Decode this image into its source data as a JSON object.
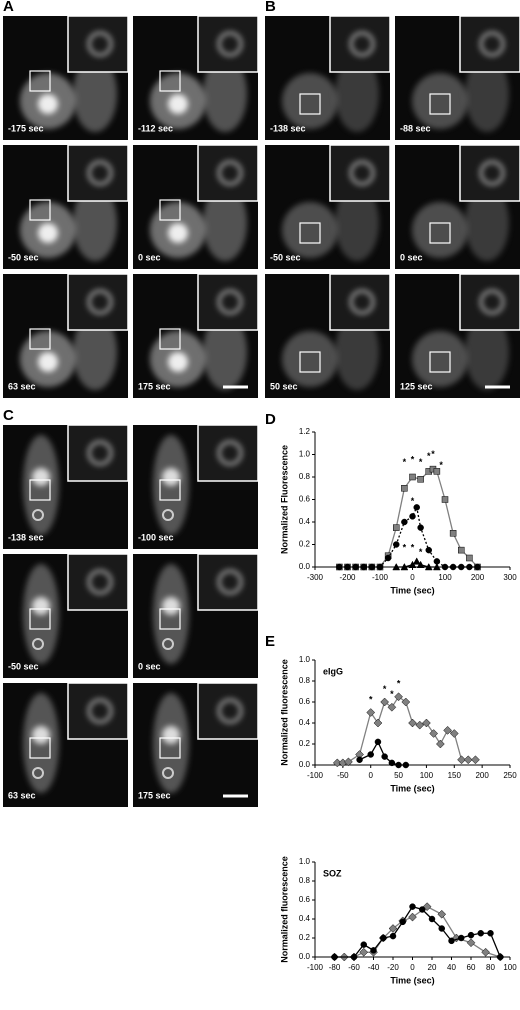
{
  "panels": [
    {
      "label": "A",
      "frames": [
        "-175 sec",
        "-112 sec",
        "-50 sec",
        "0 sec",
        "63 sec",
        "175 sec"
      ]
    },
    {
      "label": "B",
      "frames": [
        "-138 sec",
        "-88 sec",
        "-50 sec",
        "0 sec",
        "50 sec",
        "125 sec"
      ]
    },
    {
      "label": "C",
      "frames": [
        "-138 sec",
        "-100 sec",
        "-50 sec",
        "0 sec",
        "63 sec",
        "175 sec"
      ]
    }
  ],
  "chart_data": [
    {
      "type": "line",
      "panel": "D",
      "xlabel": "Time (sec)",
      "ylabel": "Normalized Fluorescence",
      "xlim": [
        -300,
        300
      ],
      "xticks": [
        -300,
        -200,
        -100,
        0,
        100,
        200,
        300
      ],
      "ylim": [
        0,
        1.2
      ],
      "yticks": [
        {
          "value": 0,
          "label": "0.0"
        },
        0.2,
        0.4,
        0.6,
        0.8,
        {
          "value": 1,
          "label": "1.0"
        },
        1.2
      ],
      "series": [
        {
          "color": "#808080",
          "marker": "square",
          "dash": false,
          "x": [
            -225,
            -200,
            -175,
            -150,
            -125,
            -100,
            -75,
            -50,
            -25,
            0,
            25,
            50,
            63,
            75,
            100,
            125,
            150,
            175,
            200
          ],
          "values": [
            0,
            0,
            0,
            0,
            0,
            0,
            0.1,
            0.35,
            0.7,
            0.8,
            0.78,
            0.85,
            0.87,
            0.85,
            0.6,
            0.3,
            0.15,
            0.08,
            0
          ]
        },
        {
          "color": "#000000",
          "marker": "circle",
          "dash": true,
          "x": [
            -225,
            -200,
            -175,
            -150,
            -125,
            -100,
            -75,
            -50,
            -25,
            0,
            13,
            25,
            50,
            75,
            100,
            125,
            150,
            175,
            200
          ],
          "values": [
            0,
            0,
            0,
            0,
            0,
            0,
            0.08,
            0.2,
            0.4,
            0.45,
            0.53,
            0.35,
            0.15,
            0.05,
            0,
            0,
            0,
            0,
            0
          ]
        },
        {
          "color": "#000000",
          "marker": "triangle",
          "dash": false,
          "x": [
            -50,
            -25,
            0,
            13,
            25,
            50,
            75
          ],
          "values": [
            0,
            0,
            0.02,
            0.05,
            0.02,
            0,
            0
          ]
        }
      ],
      "annotations": [
        {
          "text": "*",
          "x": -25,
          "y": 0.93
        },
        {
          "text": "*",
          "x": 0,
          "y": 0.95
        },
        {
          "text": "*",
          "x": 25,
          "y": 0.93
        },
        {
          "text": "*",
          "x": 50,
          "y": 0.98
        },
        {
          "text": "*",
          "x": 63,
          "y": 1.0
        },
        {
          "text": "*",
          "x": 88,
          "y": 0.9
        },
        {
          "text": "*",
          "x": 0,
          "y": 0.58
        },
        {
          "text": "*",
          "x": -25,
          "y": 0.17
        },
        {
          "text": "*",
          "x": 0,
          "y": 0.17
        },
        {
          "text": "*",
          "x": 25,
          "y": 0.13
        }
      ]
    },
    {
      "type": "line",
      "panel": "E",
      "label": "eIgG",
      "xlabel": "Time (sec)",
      "ylabel": "Normalized fluorescence",
      "xlim": [
        -100,
        250
      ],
      "xticks": [
        -100,
        -50,
        0,
        50,
        100,
        150,
        200,
        250
      ],
      "ylim": [
        0,
        1
      ],
      "yticks": [
        {
          "value": 0,
          "label": "0.0"
        },
        0.2,
        0.4,
        0.6,
        0.8,
        {
          "value": 1,
          "label": "1.0"
        }
      ],
      "series": [
        {
          "color": "#808080",
          "marker": "diamond",
          "dash": false,
          "x": [
            -60,
            -50,
            -40,
            -20,
            0,
            13,
            25,
            38,
            50,
            63,
            75,
            88,
            100,
            113,
            125,
            138,
            150,
            163,
            175,
            188
          ],
          "values": [
            0.02,
            0.02,
            0.03,
            0.1,
            0.5,
            0.4,
            0.6,
            0.55,
            0.65,
            0.6,
            0.4,
            0.38,
            0.4,
            0.3,
            0.2,
            0.33,
            0.3,
            0.05,
            0.05,
            0.05
          ]
        },
        {
          "color": "#000000",
          "marker": "circle",
          "dash": false,
          "x": [
            -20,
            0,
            13,
            25,
            38,
            50,
            63
          ],
          "values": [
            0.05,
            0.1,
            0.22,
            0.08,
            0.02,
            0,
            0
          ]
        }
      ],
      "annotations": [
        {
          "text": "*",
          "x": 0,
          "y": 0.62
        },
        {
          "text": "*",
          "x": 25,
          "y": 0.72
        },
        {
          "text": "*",
          "x": 38,
          "y": 0.67
        },
        {
          "text": "*",
          "x": 50,
          "y": 0.77
        }
      ]
    },
    {
      "type": "line",
      "label": "SOZ",
      "xlabel": "Time (sec)",
      "ylabel": "Normalized fluorescence",
      "xlim": [
        -100,
        100
      ],
      "xticks": [
        -100,
        -80,
        -60,
        -40,
        -20,
        0,
        20,
        40,
        60,
        80,
        100
      ],
      "ylim": [
        0,
        1
      ],
      "yticks": [
        {
          "value": 0,
          "label": "0.0"
        },
        0.2,
        0.4,
        0.6,
        0.8,
        {
          "value": 1,
          "label": "1.0"
        }
      ],
      "series": [
        {
          "color": "#808080",
          "marker": "diamond",
          "dash": false,
          "x": [
            -80,
            -70,
            -60,
            -50,
            -40,
            -30,
            -20,
            -10,
            0,
            15,
            30,
            45,
            60,
            75,
            90
          ],
          "values": [
            0,
            0,
            0,
            0.05,
            0.05,
            0.2,
            0.3,
            0.38,
            0.42,
            0.53,
            0.45,
            0.2,
            0.15,
            0.05,
            0
          ]
        },
        {
          "color": "#000000",
          "marker": "circle",
          "dash": false,
          "x": [
            -80,
            -60,
            -50,
            -40,
            -30,
            -20,
            -10,
            0,
            10,
            20,
            30,
            40,
            50,
            60,
            70,
            80,
            90
          ],
          "values": [
            0,
            0,
            0.13,
            0.07,
            0.2,
            0.22,
            0.37,
            0.53,
            0.5,
            0.4,
            0.3,
            0.17,
            0.2,
            0.23,
            0.25,
            0.25,
            0
          ]
        }
      ]
    }
  ]
}
